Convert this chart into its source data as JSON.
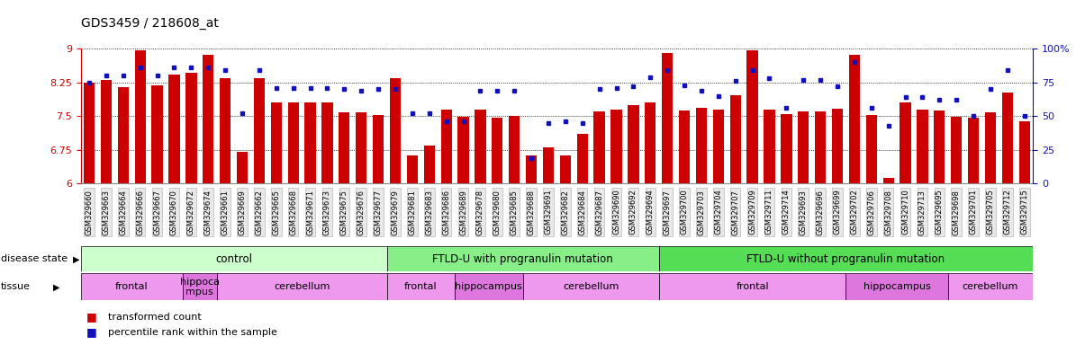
{
  "title": "GDS3459 / 218608_at",
  "samples": [
    "GSM329660",
    "GSM329663",
    "GSM329664",
    "GSM329666",
    "GSM329667",
    "GSM329670",
    "GSM329672",
    "GSM329674",
    "GSM329661",
    "GSM329669",
    "GSM329662",
    "GSM329665",
    "GSM329668",
    "GSM329671",
    "GSM329673",
    "GSM329675",
    "GSM329676",
    "GSM329677",
    "GSM329679",
    "GSM329681",
    "GSM329683",
    "GSM329686",
    "GSM329689",
    "GSM329678",
    "GSM329680",
    "GSM329685",
    "GSM329688",
    "GSM329691",
    "GSM329682",
    "GSM329684",
    "GSM329687",
    "GSM329690",
    "GSM329692",
    "GSM329694",
    "GSM329697",
    "GSM329700",
    "GSM329703",
    "GSM329704",
    "GSM329707",
    "GSM329709",
    "GSM329711",
    "GSM329714",
    "GSM329693",
    "GSM329696",
    "GSM329699",
    "GSM329702",
    "GSM329706",
    "GSM329708",
    "GSM329710",
    "GSM329713",
    "GSM329695",
    "GSM329698",
    "GSM329701",
    "GSM329705",
    "GSM329712",
    "GSM329715"
  ],
  "bar_values": [
    8.25,
    8.3,
    8.15,
    8.97,
    8.18,
    8.42,
    8.46,
    8.87,
    8.35,
    6.7,
    8.35,
    7.8,
    7.8,
    7.8,
    7.8,
    7.58,
    7.58,
    7.52,
    8.34,
    6.63,
    6.85,
    7.65,
    7.48,
    7.65,
    7.47,
    7.5,
    6.63,
    6.8,
    6.63,
    7.1,
    7.6,
    7.65,
    7.75,
    7.8,
    8.9,
    7.63,
    7.68,
    7.65,
    7.97,
    8.97,
    7.65,
    7.55,
    7.6,
    7.6,
    7.67,
    8.87,
    7.52,
    6.12,
    7.8,
    7.65,
    7.62,
    7.48,
    7.47,
    7.58,
    8.02,
    7.38
  ],
  "percentile_values": [
    75,
    80,
    80,
    86,
    80,
    86,
    86,
    86,
    84,
    52,
    84,
    71,
    71,
    71,
    71,
    70,
    69,
    70,
    70,
    52,
    52,
    46,
    46,
    69,
    69,
    69,
    19,
    45,
    46,
    45,
    70,
    71,
    72,
    79,
    84,
    73,
    69,
    65,
    76,
    84,
    78,
    56,
    77,
    77,
    72,
    90,
    56,
    43,
    64,
    64,
    62,
    62,
    50,
    70,
    84,
    50
  ],
  "ylim_left": [
    6.0,
    9.0
  ],
  "ylim_right": [
    0,
    100
  ],
  "yticks_left": [
    6.0,
    6.75,
    7.5,
    8.25,
    9.0
  ],
  "ytick_labels_left": [
    "6",
    "6.75",
    "7.5",
    "8.25",
    "9"
  ],
  "yticks_right": [
    0,
    25,
    50,
    75,
    100
  ],
  "ytick_labels_right": [
    "0",
    "25",
    "50",
    "75",
    "100%"
  ],
  "bar_color": "#cc0000",
  "dot_color": "#1111bb",
  "left_axis_color": "#cc0000",
  "right_axis_color": "#1111bb",
  "disease_groups": [
    {
      "label": "control",
      "start": 0,
      "end": 18,
      "color": "#ccffcc"
    },
    {
      "label": "FTLD-U with progranulin mutation",
      "start": 18,
      "end": 34,
      "color": "#88ee88"
    },
    {
      "label": "FTLD-U without progranulin mutation",
      "start": 34,
      "end": 56,
      "color": "#55dd55"
    }
  ],
  "tissue_groups": [
    {
      "label": "frontal",
      "start": 0,
      "end": 6,
      "color": "#ee99ee"
    },
    {
      "label": "hippoca\nmpus",
      "start": 6,
      "end": 8,
      "color": "#dd77dd"
    },
    {
      "label": "cerebellum",
      "start": 8,
      "end": 18,
      "color": "#ee99ee"
    },
    {
      "label": "frontal",
      "start": 18,
      "end": 22,
      "color": "#ee99ee"
    },
    {
      "label": "hippocampus",
      "start": 22,
      "end": 26,
      "color": "#dd77dd"
    },
    {
      "label": "cerebellum",
      "start": 26,
      "end": 34,
      "color": "#ee99ee"
    },
    {
      "label": "frontal",
      "start": 34,
      "end": 45,
      "color": "#ee99ee"
    },
    {
      "label": "hippocampus",
      "start": 45,
      "end": 51,
      "color": "#dd77dd"
    },
    {
      "label": "cerebellum",
      "start": 51,
      "end": 56,
      "color": "#ee99ee"
    }
  ],
  "disease_label_fontsize": 8.5,
  "tissue_label_fontsize": 8.0,
  "legend_label_fontsize": 8.0,
  "tick_label_fontsize": 6.0
}
